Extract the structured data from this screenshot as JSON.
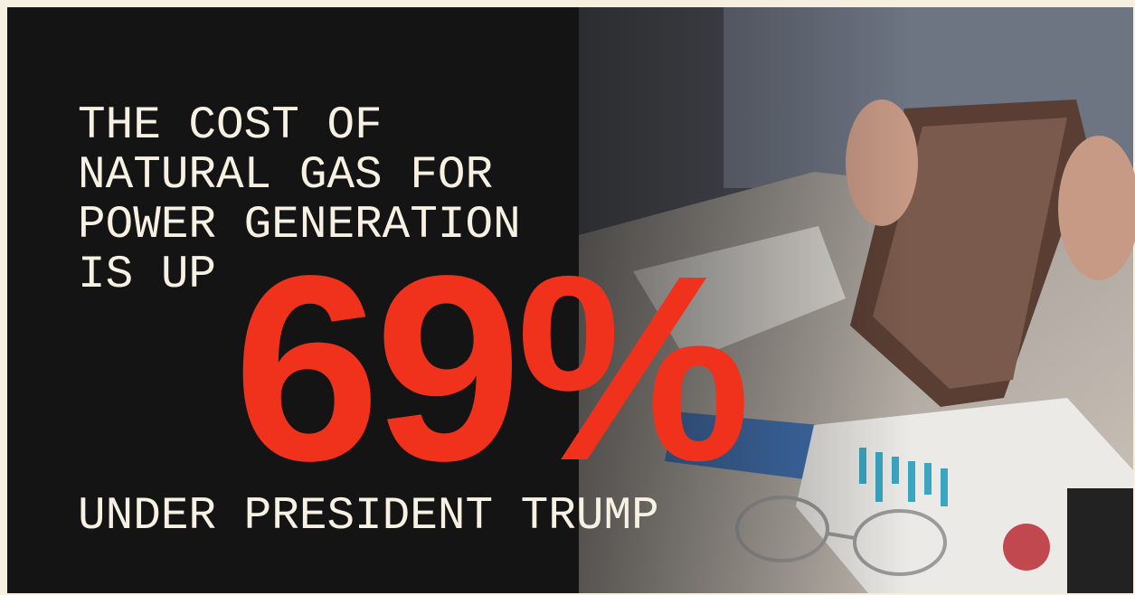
{
  "headline": {
    "lines": [
      "THE COST OF",
      "NATURAL GAS FOR",
      "POWER GENERATION",
      "IS UP"
    ]
  },
  "figure": "69%",
  "footer": "UNDER PRESIDENT TRUMP"
}
